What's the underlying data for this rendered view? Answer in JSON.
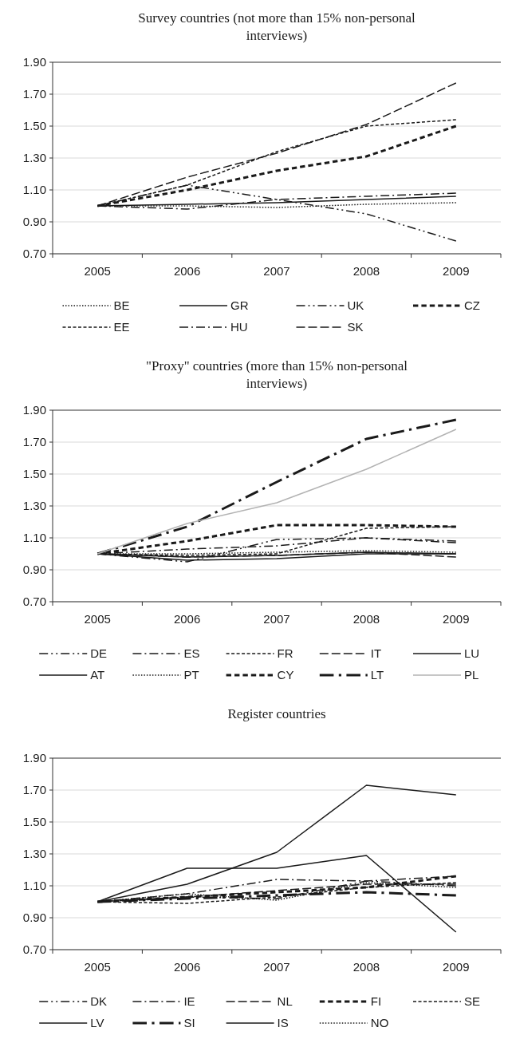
{
  "chart_data": [
    {
      "type": "line",
      "title": "Survey countries (not more than 15% non-personal interviews)",
      "categories": [
        "2005",
        "2006",
        "2007",
        "2008",
        "2009"
      ],
      "ylim": [
        0.7,
        1.9
      ],
      "yticks": [
        {
          "value": 0.7,
          "label": "0.70"
        },
        {
          "value": 0.9,
          "label": "0.90"
        },
        {
          "value": 1.1,
          "label": "1.10"
        },
        {
          "value": 1.3,
          "label": "1.30"
        },
        {
          "value": 1.5,
          "label": "1.50"
        },
        {
          "value": 1.7,
          "label": "1.70"
        },
        {
          "value": 1.9,
          "label": "1.90"
        }
      ],
      "grid": "y",
      "legend": "bottom",
      "marker": "none",
      "series": [
        {
          "name": "BE",
          "color": "#1a1a1a",
          "line_style": "dotted",
          "values": [
            1.0,
            1.0,
            0.99,
            1.01,
            1.02
          ]
        },
        {
          "name": "GR",
          "color": "#1a1a1a",
          "line_style": "solid",
          "values": [
            1.0,
            1.01,
            1.02,
            1.04,
            1.06
          ]
        },
        {
          "name": "UK",
          "color": "#1a1a1a",
          "line_style": "dashdotdot",
          "values": [
            1.0,
            1.13,
            1.04,
            0.95,
            0.78
          ]
        },
        {
          "name": "CZ",
          "color": "#1a1a1a",
          "line_style": "thick-dashed",
          "values": [
            1.0,
            1.1,
            1.22,
            1.31,
            1.5
          ]
        },
        {
          "name": "EE",
          "color": "#1a1a1a",
          "line_style": "dashed",
          "values": [
            1.0,
            1.13,
            1.34,
            1.5,
            1.54
          ]
        },
        {
          "name": "HU",
          "color": "#1a1a1a",
          "line_style": "dashdot",
          "values": [
            1.0,
            0.98,
            1.04,
            1.06,
            1.08
          ]
        },
        {
          "name": "SK",
          "color": "#1a1a1a",
          "line_style": "longdash",
          "values": [
            1.0,
            1.18,
            1.33,
            1.51,
            1.77
          ]
        }
      ]
    },
    {
      "type": "line",
      "title": "\"Proxy\" countries (more than 15% non-personal interviews)",
      "categories": [
        "2005",
        "2006",
        "2007",
        "2008",
        "2009"
      ],
      "ylim": [
        0.7,
        1.9
      ],
      "yticks": [
        {
          "value": 0.7,
          "label": "0.70"
        },
        {
          "value": 0.9,
          "label": "0.90"
        },
        {
          "value": 1.1,
          "label": "1.10"
        },
        {
          "value": 1.3,
          "label": "1.30"
        },
        {
          "value": 1.5,
          "label": "1.50"
        },
        {
          "value": 1.7,
          "label": "1.70"
        },
        {
          "value": 1.9,
          "label": "1.90"
        }
      ],
      "grid": "y",
      "legend": "bottom",
      "marker": "none",
      "series": [
        {
          "name": "DE",
          "color": "#1a1a1a",
          "line_style": "dashdotdot",
          "values": [
            1.0,
            0.95,
            1.09,
            1.1,
            1.08
          ]
        },
        {
          "name": "ES",
          "color": "#1a1a1a",
          "line_style": "dashdot",
          "values": [
            1.0,
            1.03,
            1.05,
            1.1,
            1.07
          ]
        },
        {
          "name": "FR",
          "color": "#1a1a1a",
          "line_style": "dashed",
          "values": [
            1.0,
            0.99,
            1.0,
            1.16,
            1.17
          ]
        },
        {
          "name": "IT",
          "color": "#1a1a1a",
          "line_style": "longdash",
          "values": [
            1.0,
            0.98,
            0.99,
            1.01,
            0.98
          ]
        },
        {
          "name": "LU",
          "color": "#1a1a1a",
          "line_style": "solid",
          "values": [
            1.0,
            0.98,
            0.99,
            1.01,
            1.0
          ]
        },
        {
          "name": "AT",
          "color": "#1a1a1a",
          "line_style": "solid",
          "values": [
            1.0,
            0.96,
            0.97,
            1.0,
            1.0
          ]
        },
        {
          "name": "PT",
          "color": "#1a1a1a",
          "line_style": "dotted",
          "values": [
            1.0,
            1.0,
            1.01,
            1.02,
            1.01
          ]
        },
        {
          "name": "CY",
          "color": "#1a1a1a",
          "line_style": "thick-dashed",
          "values": [
            1.0,
            1.08,
            1.18,
            1.18,
            1.17
          ]
        },
        {
          "name": "LT",
          "color": "#1a1a1a",
          "line_style": "thick-dashdot",
          "values": [
            1.0,
            1.17,
            1.45,
            1.72,
            1.84
          ]
        },
        {
          "name": "PL",
          "color": "#b3b3b3",
          "line_style": "solid",
          "values": [
            1.0,
            1.19,
            1.32,
            1.53,
            1.78
          ]
        }
      ]
    },
    {
      "type": "line",
      "title": "Register countries",
      "categories": [
        "2005",
        "2006",
        "2007",
        "2008",
        "2009"
      ],
      "ylim": [
        0.7,
        1.9
      ],
      "yticks": [
        {
          "value": 0.7,
          "label": "0.70"
        },
        {
          "value": 0.9,
          "label": "0.90"
        },
        {
          "value": 1.1,
          "label": "1.10"
        },
        {
          "value": 1.3,
          "label": "1.30"
        },
        {
          "value": 1.5,
          "label": "1.50"
        },
        {
          "value": 1.7,
          "label": "1.70"
        },
        {
          "value": 1.9,
          "label": "1.90"
        }
      ],
      "grid": "y",
      "legend": "bottom",
      "marker": "none",
      "series": [
        {
          "name": "DK",
          "color": "#1a1a1a",
          "line_style": "dashdotdot",
          "values": [
            1.0,
            1.03,
            1.02,
            1.13,
            1.1
          ]
        },
        {
          "name": "IE",
          "color": "#1a1a1a",
          "line_style": "dashdot",
          "values": [
            1.0,
            1.05,
            1.14,
            1.13,
            1.16
          ]
        },
        {
          "name": "NL",
          "color": "#1a1a1a",
          "line_style": "longdash",
          "values": [
            1.0,
            1.03,
            1.07,
            1.11,
            1.11
          ]
        },
        {
          "name": "FI",
          "color": "#1a1a1a",
          "line_style": "thick-dashed",
          "values": [
            1.0,
            1.03,
            1.06,
            1.09,
            1.16
          ]
        },
        {
          "name": "SE",
          "color": "#1a1a1a",
          "line_style": "dashed",
          "values": [
            1.0,
            0.99,
            1.03,
            1.09,
            1.12
          ]
        },
        {
          "name": "LV",
          "color": "#1a1a1a",
          "line_style": "solid",
          "values": [
            1.0,
            1.11,
            1.31,
            1.73,
            1.67
          ]
        },
        {
          "name": "SI",
          "color": "#1a1a1a",
          "line_style": "thick-dashdot",
          "values": [
            1.0,
            1.02,
            1.04,
            1.06,
            1.04
          ]
        },
        {
          "name": "IS",
          "color": "#1a1a1a",
          "line_style": "solid",
          "values": [
            1.0,
            1.21,
            1.21,
            1.29,
            0.81
          ]
        },
        {
          "name": "NO",
          "color": "#1a1a1a",
          "line_style": "dotted",
          "values": [
            1.0,
            1.05,
            1.01,
            1.12,
            1.09
          ]
        }
      ]
    }
  ]
}
